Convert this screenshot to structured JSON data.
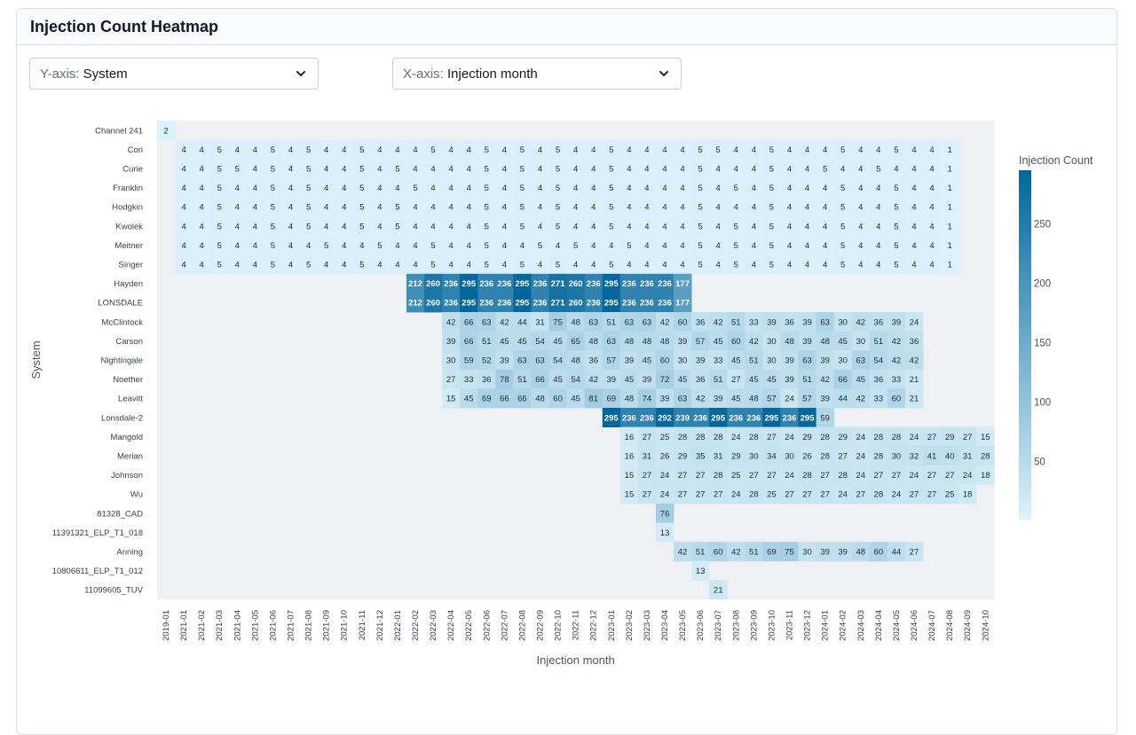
{
  "card": {
    "title": "Injection Count Heatmap"
  },
  "controls": {
    "y_axis": {
      "prefix": "Y-axis:",
      "value": "System"
    },
    "x_axis": {
      "prefix": "X-axis:",
      "value": "Injection month"
    }
  },
  "colors": {
    "plot_bg": "#eef0f4",
    "scale_low": "#dcf1fb",
    "scale_high": "#03679b",
    "text_dark": "#1f2937",
    "text_light": "#ffffff"
  },
  "chart_data": {
    "type": "heatmap",
    "xlabel": "Injection month",
    "ylabel": "System",
    "colorbar": {
      "title": "Injection Count",
      "ticks": [
        50,
        100,
        150,
        200,
        250
      ],
      "range": [
        1,
        295
      ]
    },
    "x": [
      "2019-01",
      "2021-01",
      "2021-02",
      "2021-03",
      "2021-04",
      "2021-05",
      "2021-06",
      "2021-07",
      "2021-08",
      "2021-09",
      "2021-10",
      "2021-11",
      "2021-12",
      "2022-01",
      "2022-02",
      "2022-03",
      "2022-04",
      "2022-05",
      "2022-06",
      "2022-07",
      "2022-08",
      "2022-09",
      "2022-10",
      "2022-11",
      "2022-12",
      "2023-01",
      "2023-02",
      "2023-03",
      "2023-04",
      "2023-05",
      "2023-06",
      "2023-07",
      "2023-08",
      "2023-09",
      "2023-10",
      "2023-11",
      "2023-12",
      "2024-01",
      "2024-02",
      "2024-03",
      "2024-04",
      "2024-05",
      "2024-06",
      "2024-07",
      "2024-08",
      "2024-09",
      "2024-10"
    ],
    "y": [
      "Channel 241",
      "Cori",
      "Curie",
      "Franklin",
      "Hodgkin",
      "Kwolek",
      "Meitner",
      "Singer",
      "Hayden",
      "LONSDALE",
      "McClintock",
      "Carson",
      "Nightingale",
      "Noether",
      "Leavitt",
      "Lonsdale-2",
      "Mangold",
      "Merian",
      "Johnson",
      "Wu",
      "81328_CAD",
      "11391321_ELP_T1_018",
      "Anning",
      "10806611_ELP_T1_012",
      "11099605_TUV"
    ],
    "rows": [
      {
        "start": 0,
        "values": [
          2
        ]
      },
      {
        "start": 1,
        "values": [
          4,
          4,
          5,
          4,
          4,
          5,
          4,
          5,
          4,
          4,
          5,
          4,
          4,
          4,
          5,
          4,
          4,
          5,
          4,
          5,
          4,
          5,
          4,
          4,
          5,
          4,
          4,
          4,
          4,
          5,
          5,
          4,
          4,
          5,
          4,
          4,
          4,
          5,
          4,
          4,
          5,
          4,
          4,
          1
        ]
      },
      {
        "start": 1,
        "values": [
          4,
          4,
          5,
          5,
          4,
          5,
          4,
          5,
          4,
          4,
          5,
          4,
          5,
          4,
          4,
          4,
          4,
          5,
          4,
          5,
          4,
          5,
          4,
          4,
          5,
          4,
          4,
          4,
          4,
          5,
          4,
          4,
          4,
          5,
          4,
          4,
          5,
          4,
          4,
          5,
          4,
          4,
          4,
          1
        ]
      },
      {
        "start": 1,
        "values": [
          4,
          4,
          5,
          4,
          4,
          5,
          4,
          5,
          4,
          4,
          5,
          4,
          4,
          5,
          4,
          4,
          4,
          5,
          4,
          5,
          4,
          5,
          4,
          4,
          5,
          4,
          4,
          4,
          4,
          5,
          4,
          5,
          4,
          5,
          4,
          4,
          4,
          5,
          4,
          4,
          5,
          4,
          4,
          1
        ]
      },
      {
        "start": 1,
        "values": [
          4,
          4,
          5,
          4,
          4,
          5,
          4,
          5,
          4,
          4,
          5,
          4,
          5,
          4,
          4,
          4,
          4,
          5,
          4,
          5,
          4,
          5,
          4,
          4,
          5,
          4,
          4,
          4,
          4,
          5,
          4,
          4,
          4,
          5,
          4,
          4,
          4,
          5,
          4,
          4,
          5,
          4,
          4,
          1
        ]
      },
      {
        "start": 1,
        "values": [
          4,
          4,
          5,
          4,
          4,
          5,
          4,
          5,
          4,
          4,
          5,
          4,
          5,
          4,
          4,
          4,
          4,
          5,
          4,
          5,
          4,
          5,
          4,
          4,
          5,
          4,
          4,
          4,
          4,
          5,
          4,
          5,
          4,
          5,
          4,
          4,
          4,
          5,
          4,
          4,
          5,
          4,
          4,
          1
        ]
      },
      {
        "start": 1,
        "values": [
          4,
          4,
          5,
          4,
          4,
          5,
          4,
          4,
          5,
          4,
          4,
          5,
          4,
          4,
          5,
          4,
          4,
          5,
          4,
          4,
          5,
          4,
          5,
          4,
          4,
          5,
          4,
          4,
          4,
          5,
          4,
          5,
          4,
          5,
          4,
          4,
          4,
          5,
          4,
          4,
          5,
          4,
          4,
          1
        ]
      },
      {
        "start": 1,
        "values": [
          4,
          4,
          5,
          4,
          4,
          5,
          4,
          5,
          4,
          4,
          5,
          4,
          4,
          4,
          5,
          4,
          4,
          5,
          4,
          5,
          4,
          5,
          4,
          4,
          5,
          4,
          4,
          4,
          4,
          5,
          4,
          5,
          4,
          5,
          4,
          4,
          4,
          5,
          4,
          4,
          5,
          4,
          4,
          1
        ]
      },
      {
        "start": 14,
        "values": [
          212,
          260,
          236,
          295,
          236,
          236,
          295,
          236,
          271,
          260,
          236,
          295,
          236,
          236,
          236,
          177
        ]
      },
      {
        "start": 14,
        "values": [
          212,
          260,
          236,
          295,
          236,
          236,
          295,
          236,
          271,
          260,
          236,
          295,
          236,
          236,
          236,
          177
        ]
      },
      {
        "start": 16,
        "values": [
          42,
          66,
          63,
          42,
          44,
          31,
          75,
          48,
          63,
          51,
          63,
          63,
          42,
          60,
          36,
          42,
          51,
          33,
          39,
          36,
          39,
          63,
          30,
          42,
          36,
          39,
          24
        ]
      },
      {
        "start": 16,
        "values": [
          39,
          66,
          51,
          45,
          45,
          54,
          45,
          65,
          48,
          63,
          48,
          48,
          48,
          39,
          57,
          45,
          60,
          42,
          30,
          48,
          39,
          48,
          45,
          30,
          51,
          42,
          36
        ]
      },
      {
        "start": 16,
        "values": [
          30,
          59,
          52,
          39,
          63,
          63,
          54,
          48,
          36,
          57,
          39,
          45,
          60,
          30,
          39,
          33,
          45,
          51,
          30,
          39,
          63,
          39,
          30,
          63,
          54,
          42,
          42
        ]
      },
      {
        "start": 16,
        "values": [
          27,
          33,
          36,
          78,
          51,
          66,
          45,
          54,
          42,
          39,
          45,
          39,
          72,
          45,
          36,
          51,
          27,
          45,
          45,
          39,
          51,
          42,
          66,
          45,
          36,
          33,
          21
        ]
      },
      {
        "start": 16,
        "values": [
          15,
          45,
          69,
          66,
          66,
          48,
          60,
          45,
          81,
          69,
          48,
          74,
          39,
          63,
          42,
          39,
          45,
          48,
          57,
          24,
          57,
          39,
          44,
          42,
          33,
          60,
          21
        ]
      },
      {
        "start": 25,
        "values": [
          295,
          236,
          236,
          292,
          239,
          236,
          295,
          236,
          236,
          295,
          236,
          295,
          59
        ]
      },
      {
        "start": 26,
        "values": [
          16,
          27,
          25,
          28,
          28,
          28,
          24,
          28,
          27,
          24,
          29,
          28,
          29,
          24,
          28,
          28,
          24,
          27,
          29,
          27,
          15
        ]
      },
      {
        "start": 26,
        "values": [
          16,
          31,
          26,
          29,
          35,
          31,
          29,
          30,
          34,
          30,
          26,
          28,
          27,
          24,
          28,
          30,
          32,
          41,
          40,
          31,
          28
        ]
      },
      {
        "start": 26,
        "values": [
          15,
          27,
          24,
          27,
          27,
          28,
          25,
          27,
          27,
          24,
          28,
          27,
          28,
          24,
          27,
          27,
          24,
          27,
          27,
          24,
          18
        ]
      },
      {
        "start": 26,
        "values": [
          15,
          27,
          24,
          27,
          27,
          27,
          24,
          28,
          25,
          27,
          27,
          27,
          24,
          27,
          28,
          24,
          27,
          27,
          25,
          18
        ]
      },
      {
        "start": 28,
        "values": [
          76
        ]
      },
      {
        "start": 28,
        "values": [
          13
        ]
      },
      {
        "start": 29,
        "values": [
          42,
          51,
          60,
          42,
          51,
          69,
          75,
          30,
          39,
          39,
          48,
          60,
          44,
          27
        ]
      },
      {
        "start": 30,
        "values": [
          13
        ]
      },
      {
        "start": 31,
        "values": [
          21
        ]
      }
    ]
  }
}
